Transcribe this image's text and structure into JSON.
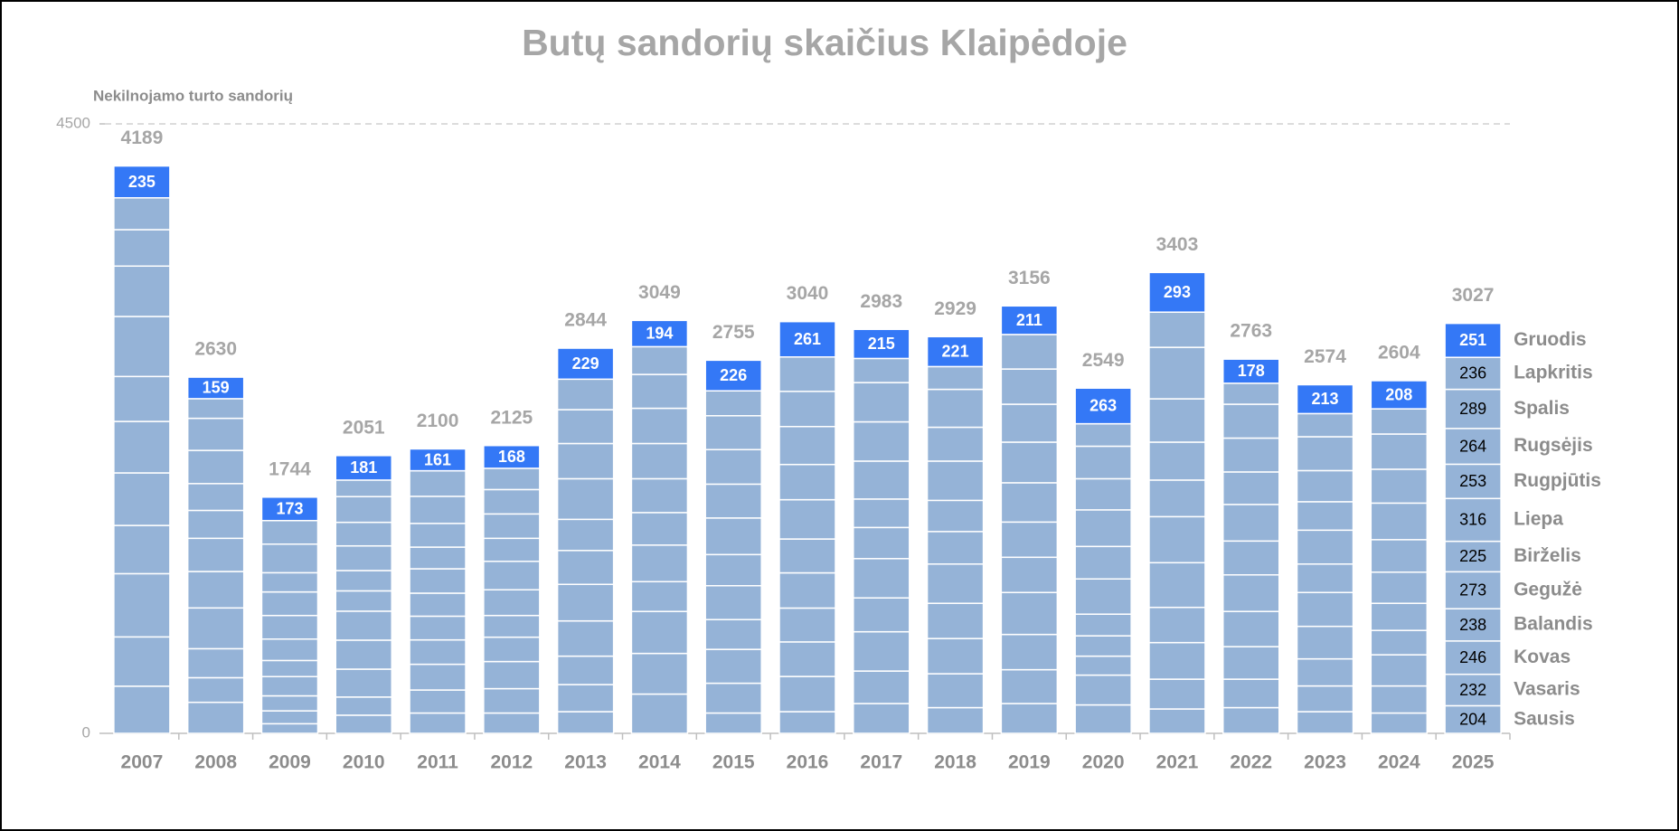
{
  "chart_data": {
    "type": "stacked_bar",
    "title": "Butų sandorių skaičius Klaipėdoje",
    "y_label": "Nekilnojamo turto sandorių",
    "categories": [
      "2007",
      "2008",
      "2009",
      "2010",
      "2011",
      "2012",
      "2013",
      "2014",
      "2015",
      "2016",
      "2017",
      "2018",
      "2019",
      "2020",
      "2021",
      "2022",
      "2023",
      "2024",
      "2025"
    ],
    "ylim": [
      0,
      4500
    ],
    "yticks": [
      0,
      4500
    ],
    "grid": true,
    "totals": [
      4189,
      2630,
      1744,
      2051,
      2100,
      2125,
      2844,
      3049,
      2755,
      3040,
      2983,
      2929,
      3156,
      2549,
      3403,
      2763,
      2574,
      2604,
      3027
    ],
    "series": [
      {
        "name": "Sausis",
        "color": "#95b3d7",
        "show_labels": "last",
        "values": [
          348,
          229,
          71,
          134,
          150,
          150,
          160,
          290,
          150,
          160,
          220,
          190,
          220,
          210,
          180,
          190,
          160,
          150,
          204
        ]
      },
      {
        "name": "Vasaris",
        "color": "#95b3d7",
        "show_labels": "last",
        "values": [
          364,
          182,
          95,
          134,
          170,
          180,
          200,
          300,
          220,
          260,
          240,
          250,
          250,
          220,
          220,
          210,
          190,
          200,
          232
        ]
      },
      {
        "name": "Kovas",
        "color": "#95b3d7",
        "show_labels": "last",
        "values": [
          467,
          214,
          111,
          206,
          190,
          200,
          210,
          310,
          250,
          255,
          290,
          260,
          260,
          140,
          270,
          240,
          200,
          230,
          246
        ]
      },
      {
        "name": "Balandis",
        "color": "#95b3d7",
        "show_labels": "last",
        "values": [
          356,
          301,
          142,
          214,
          180,
          180,
          260,
          220,
          220,
          250,
          250,
          260,
          310,
          150,
          260,
          260,
          240,
          180,
          238
        ]
      },
      {
        "name": "Gegužė",
        "color": "#95b3d7",
        "show_labels": "last",
        "values": [
          388,
          269,
          119,
          214,
          175,
          160,
          270,
          270,
          250,
          260,
          290,
          290,
          260,
          160,
          330,
          270,
          250,
          200,
          273
        ]
      },
      {
        "name": "Birželis",
        "color": "#95b3d7",
        "show_labels": "last",
        "values": [
          380,
          245,
          158,
          150,
          170,
          190,
          250,
          240,
          230,
          250,
          230,
          240,
          260,
          260,
          340,
          250,
          210,
          230,
          225
        ]
      },
      {
        "name": "Liepa",
        "color": "#95b3d7",
        "show_labels": "last",
        "values": [
          332,
          206,
          174,
          150,
          180,
          210,
          230,
          250,
          270,
          290,
          210,
          230,
          290,
          240,
          270,
          270,
          250,
          240,
          316
        ]
      },
      {
        "name": "Rugpjūtis",
        "color": "#95b3d7",
        "show_labels": "last",
        "values": [
          443,
          198,
          174,
          182,
          160,
          170,
          300,
          260,
          250,
          260,
          280,
          290,
          300,
          270,
          280,
          240,
          210,
          270,
          253
        ]
      },
      {
        "name": "Rugsėjis",
        "color": "#95b3d7",
        "show_labels": "last",
        "values": [
          372,
          245,
          142,
          174,
          175,
          180,
          260,
          260,
          255,
          280,
          290,
          250,
          280,
          230,
          320,
          250,
          230,
          250,
          264
        ]
      },
      {
        "name": "Spalis",
        "color": "#95b3d7",
        "show_labels": "last",
        "values": [
          269,
          237,
          211,
          190,
          200,
          180,
          250,
          250,
          250,
          260,
          290,
          280,
          260,
          240,
          380,
          250,
          250,
          260,
          289
        ]
      },
      {
        "name": "Lapkritis",
        "color": "#95b3d7",
        "show_labels": "last",
        "values": [
          235,
          145,
          174,
          122,
          189,
          157,
          225,
          205,
          184,
          254,
          178,
          168,
          255,
          166,
          260,
          155,
          171,
          186,
          236
        ]
      },
      {
        "name": "Gruodis",
        "color": "#3478f6",
        "show_labels": "all",
        "values": [
          235,
          159,
          173,
          181,
          161,
          168,
          229,
          194,
          226,
          261,
          215,
          221,
          211,
          263,
          293,
          178,
          213,
          208,
          251
        ]
      }
    ]
  }
}
